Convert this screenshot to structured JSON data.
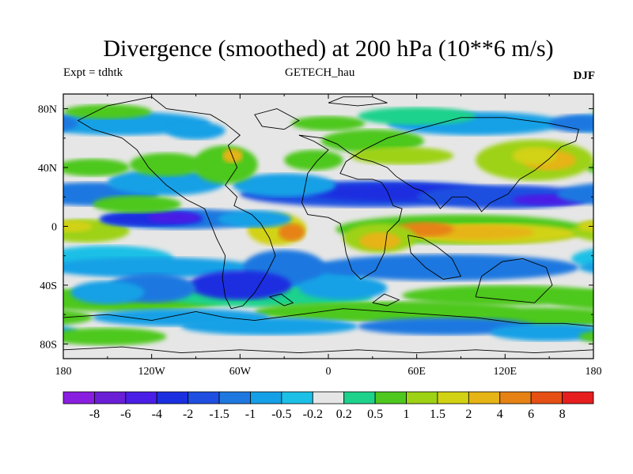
{
  "header": {
    "title": "Divergence (smoothed) at 200 hPa (10**6 m/s)",
    "experiment": "Expt = tdhtk",
    "model": "GETECH_hau",
    "season": "DJF"
  },
  "axes": {
    "lat_labels": [
      "80N",
      "40N",
      "0",
      "40S",
      "80S"
    ],
    "lat_values": [
      80,
      40,
      0,
      -40,
      -80
    ],
    "lon_labels": [
      "180",
      "120W",
      "60W",
      "0",
      "60E",
      "120E",
      "180"
    ],
    "lon_values": [
      -180,
      -120,
      -60,
      0,
      60,
      120,
      180
    ],
    "lat_range": [
      -90,
      90
    ],
    "lon_range": [
      -180,
      180
    ]
  },
  "colorbar": {
    "labels": [
      "-8",
      "-6",
      "-4",
      "-2",
      "-1.5",
      "-1",
      "-0.5",
      "-0.2",
      "0.2",
      "0.5",
      "1",
      "1.5",
      "2",
      "4",
      "6",
      "8"
    ],
    "colors": [
      "#8a1ee0",
      "#6a1ed6",
      "#4a1ee6",
      "#1c2fe0",
      "#1e4fe0",
      "#1e78e0",
      "#14a0e6",
      "#1cc0e6",
      "#e6e6e6",
      "#1ed28c",
      "#4ec81e",
      "#9ed214",
      "#d2d214",
      "#e6b414",
      "#e68214",
      "#e65014",
      "#e61e1e"
    ]
  },
  "legend": {
    "neutral_color": "#e6e6e6"
  }
}
